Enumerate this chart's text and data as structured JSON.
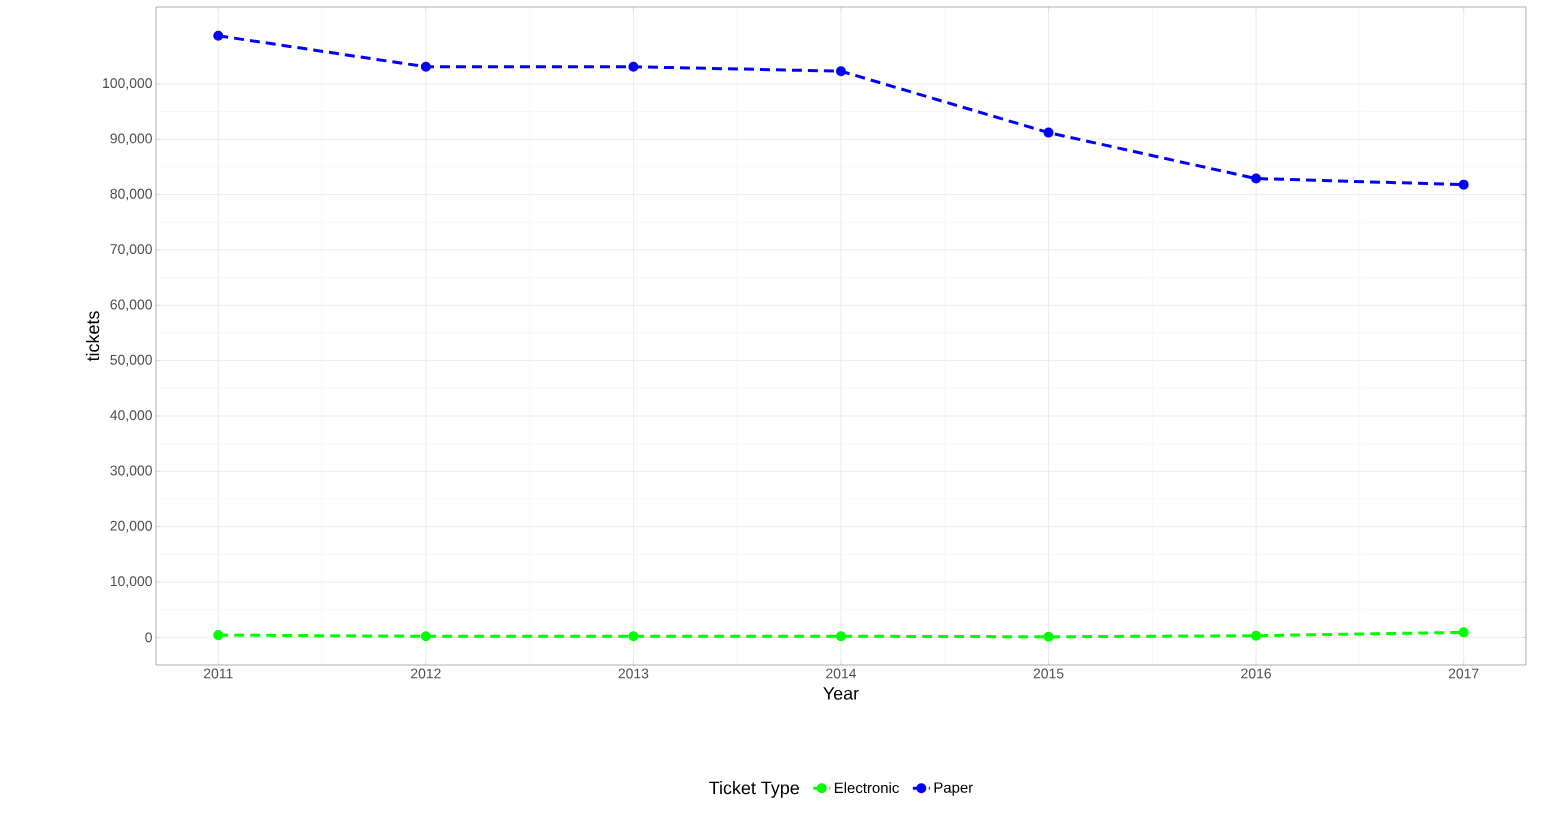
{
  "chart_data": {
    "type": "line",
    "xlabel": "Year",
    "ylabel": "tickets",
    "legend_title": "Ticket Type",
    "x": [
      2011,
      2012,
      2013,
      2014,
      2015,
      2016,
      2017
    ],
    "series": [
      {
        "name": "Electronic",
        "color": "#00ff00",
        "values": [
          400,
          200,
          200,
          200,
          100,
          300,
          900
        ]
      },
      {
        "name": "Paper",
        "color": "#0000ff",
        "values": [
          108700,
          103100,
          103100,
          102300,
          91200,
          82900,
          81800
        ]
      }
    ],
    "xlim": [
      2010.7,
      2017.3
    ],
    "ylim": [
      -5000,
      113900
    ],
    "xticks": [
      2011,
      2012,
      2013,
      2014,
      2015,
      2016,
      2017
    ],
    "yticks": [
      0,
      {
        "value": 10000,
        "label": "10,000"
      },
      {
        "value": 20000,
        "label": "20,000"
      },
      {
        "value": 30000,
        "label": "30,000"
      },
      {
        "value": 40000,
        "label": "40,000"
      },
      {
        "value": 50000,
        "label": "50,000"
      },
      {
        "value": 60000,
        "label": "60,000"
      },
      {
        "value": 70000,
        "label": "70,000"
      },
      {
        "value": 80000,
        "label": "80,000"
      },
      {
        "value": 90000,
        "label": "90,000"
      },
      {
        "value": 100000,
        "label": "100,000"
      }
    ],
    "grid": true,
    "legend": "bottom",
    "marker": "circle",
    "line_style": "dashed"
  }
}
